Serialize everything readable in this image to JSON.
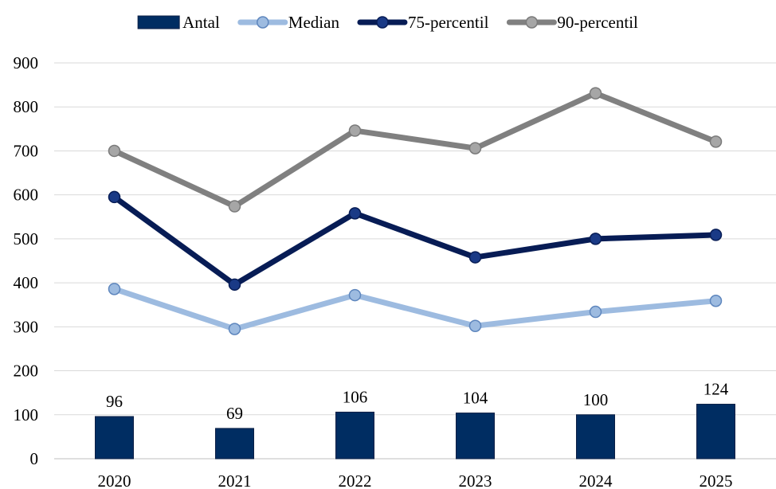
{
  "chart_data": {
    "type": "bar+line",
    "categories": [
      "2020",
      "2021",
      "2022",
      "2023",
      "2024",
      "2025"
    ],
    "ylim": [
      0,
      900
    ],
    "yticks": [
      0,
      100,
      200,
      300,
      400,
      500,
      600,
      700,
      800,
      900
    ],
    "grid": true,
    "legend_position": "top",
    "series": [
      {
        "name": "Antal",
        "kind": "bar",
        "color": "#002D62",
        "show_labels": true,
        "values": [
          96,
          69,
          106,
          104,
          100,
          124
        ]
      },
      {
        "name": "Median",
        "kind": "line",
        "color": "#9DBBE0",
        "marker_fill": "#9DBBE0",
        "marker_stroke": "#5E86BD",
        "values": [
          386,
          295,
          372,
          302,
          334,
          359
        ]
      },
      {
        "name": "75-percentil",
        "kind": "line",
        "color": "#071C55",
        "marker_fill": "#1A3A86",
        "marker_stroke": "#071C55",
        "values": [
          595,
          396,
          558,
          458,
          500,
          509
        ]
      },
      {
        "name": "90-percentil",
        "kind": "line",
        "color": "#808080",
        "marker_fill": "#A6A6A6",
        "marker_stroke": "#7A7A7A",
        "values": [
          700,
          574,
          746,
          706,
          831,
          721
        ]
      }
    ]
  }
}
